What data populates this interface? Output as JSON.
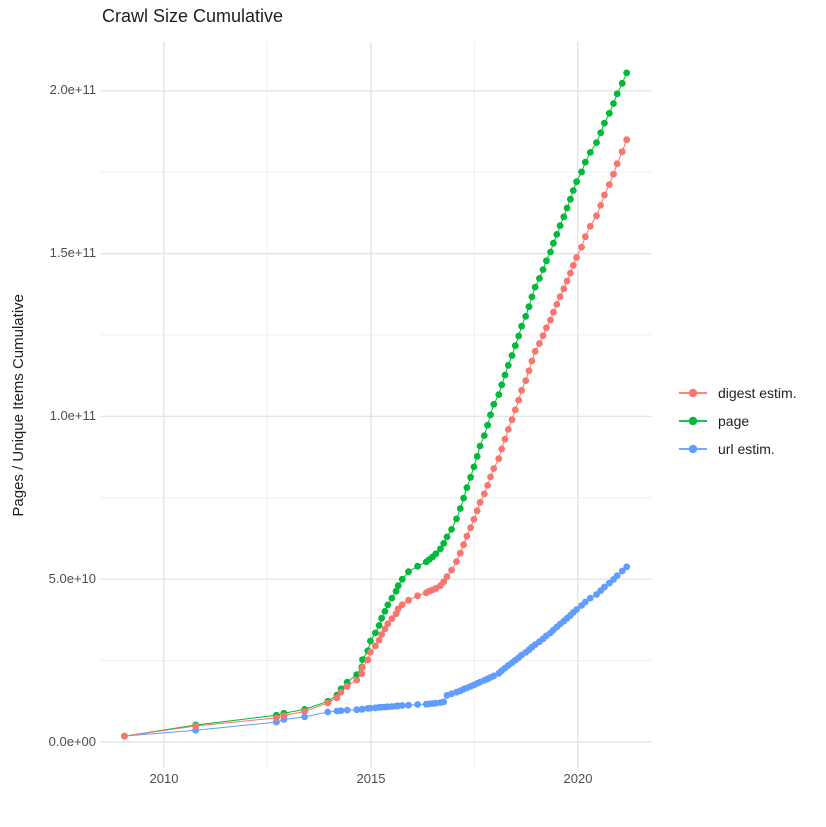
{
  "title": "Crawl Size Cumulative",
  "axes": {
    "y_label": "Pages / Unique Items Cumulative",
    "y_ticks": [
      "0.0e+00",
      "5.0e+10",
      "1.0e+11",
      "1.5e+11",
      "2.0e+11"
    ],
    "x_ticks": [
      "2010",
      "2015",
      "2020"
    ]
  },
  "legend": [
    {
      "label": "digest estim.",
      "color": "#F8766D"
    },
    {
      "label": "page",
      "color": "#00BA38"
    },
    {
      "label": "url estim.",
      "color": "#619CFF"
    }
  ],
  "colors": {
    "background": "#FFFFFF",
    "grid_major": "#E4E4E4",
    "grid_minor": "#F0F0F0",
    "tick_text": "#4D4D4D",
    "text": "#1F1F1F",
    "digest": "#F8766D",
    "page": "#00BA38",
    "url": "#619CFF"
  },
  "chart_data": {
    "type": "scatter",
    "title": "Crawl Size Cumulative",
    "xlabel": "",
    "ylabel": "Pages / Unique Items Cumulative",
    "legend_position": "right",
    "grid": true,
    "x_unit": "year (decimal, one point per crawl)",
    "value_unit": "items, in billions (1e9)",
    "xlim": [
      2008.46,
      2021.79
    ],
    "ylim_billions": [
      -8,
      215
    ],
    "x_major_ticks": [
      2010,
      2015,
      2020
    ],
    "x_minor_ticks": [
      2012.5,
      2017.5
    ],
    "y_major_ticks_billions": [
      0,
      50,
      100,
      150,
      200
    ],
    "y_minor_ticks_billions": [
      25,
      75,
      125,
      175
    ],
    "x": [
      2009.05,
      2010.77,
      2012.72,
      2012.9,
      2013.4,
      2013.96,
      2014.18,
      2014.28,
      2014.43,
      2014.66,
      2014.78,
      2014.8,
      2014.93,
      2014.99,
      2015.11,
      2015.2,
      2015.26,
      2015.34,
      2015.41,
      2015.51,
      2015.61,
      2015.66,
      2015.76,
      2015.91,
      2016.13,
      2016.34,
      2016.41,
      2016.49,
      2016.57,
      2016.68,
      2016.76,
      2016.84,
      2016.95,
      2017.07,
      2017.16,
      2017.24,
      2017.32,
      2017.41,
      2017.49,
      2017.57,
      2017.64,
      2017.74,
      2017.82,
      2017.89,
      2017.97,
      2018.09,
      2018.16,
      2018.24,
      2018.32,
      2018.41,
      2018.49,
      2018.57,
      2018.64,
      2018.74,
      2018.82,
      2018.89,
      2018.97,
      2019.07,
      2019.16,
      2019.24,
      2019.34,
      2019.41,
      2019.49,
      2019.57,
      2019.66,
      2019.74,
      2019.82,
      2019.89,
      2019.97,
      2020.09,
      2020.18,
      2020.3,
      2020.45,
      2020.55,
      2020.64,
      2020.76,
      2020.86,
      2020.95,
      2021.07,
      2021.18
    ],
    "series": [
      {
        "name": "digest estim.",
        "color": "#F8766D",
        "values": [
          1.8,
          4.9,
          7.4,
          8.1,
          9.4,
          12.0,
          13.6,
          15.3,
          17.1,
          19.0,
          21.0,
          22.9,
          25.2,
          27.6,
          29.5,
          31.3,
          33.0,
          34.7,
          36.3,
          37.9,
          39.4,
          40.9,
          42.2,
          43.5,
          44.9,
          45.8,
          46.3,
          46.7,
          47.2,
          48.0,
          49.2,
          50.8,
          52.8,
          55.4,
          58.0,
          60.6,
          63.2,
          65.8,
          68.4,
          71.0,
          73.6,
          76.2,
          78.8,
          81.4,
          84.0,
          87.0,
          90.0,
          93.0,
          96.0,
          99.0,
          102.0,
          105.0,
          108.0,
          111.0,
          114.0,
          117.0,
          120.0,
          122.4,
          124.8,
          127.2,
          129.6,
          132.0,
          134.4,
          136.8,
          139.2,
          141.6,
          144.0,
          146.4,
          148.8,
          152.0,
          155.2,
          158.4,
          161.6,
          164.8,
          168.0,
          171.2,
          174.4,
          177.6,
          181.3,
          185.0
        ]
      },
      {
        "name": "page",
        "color": "#00BA38",
        "values": [
          1.8,
          5.2,
          8.2,
          8.8,
          10.0,
          12.5,
          14.4,
          16.3,
          18.4,
          20.7,
          23.0,
          25.3,
          28.0,
          31.0,
          33.5,
          35.8,
          38.0,
          40.1,
          42.1,
          44.2,
          46.3,
          48.0,
          50.0,
          52.3,
          54.0,
          55.3,
          56.0,
          56.8,
          57.8,
          59.3,
          61.0,
          63.0,
          65.3,
          68.5,
          71.7,
          74.9,
          78.1,
          81.3,
          84.5,
          87.7,
          90.9,
          94.1,
          97.3,
          100.5,
          103.7,
          106.7,
          109.7,
          112.7,
          115.7,
          118.7,
          121.7,
          124.7,
          127.7,
          130.7,
          133.7,
          136.7,
          139.7,
          142.4,
          145.1,
          147.8,
          150.5,
          153.2,
          155.9,
          158.6,
          161.3,
          164.0,
          166.7,
          169.4,
          172.1,
          175.1,
          178.1,
          181.1,
          184.1,
          187.1,
          190.1,
          193.1,
          196.1,
          199.1,
          202.3,
          205.5
        ]
      },
      {
        "name": "url estim.",
        "color": "#619CFF",
        "values": [
          1.8,
          3.6,
          6.1,
          6.9,
          7.7,
          9.2,
          9.5,
          9.6,
          9.8,
          9.9,
          10.0,
          10.1,
          10.3,
          10.4,
          10.5,
          10.6,
          10.7,
          10.7,
          10.8,
          10.9,
          11.0,
          11.1,
          11.2,
          11.3,
          11.5,
          11.6,
          11.7,
          11.8,
          11.9,
          12.1,
          12.3,
          14.3,
          14.8,
          15.3,
          15.7,
          16.2,
          16.6,
          17.1,
          17.5,
          18.0,
          18.4,
          18.9,
          19.4,
          19.8,
          20.3,
          21.1,
          21.9,
          22.7,
          23.5,
          24.3,
          25.1,
          25.9,
          26.7,
          27.5,
          28.3,
          29.1,
          29.9,
          30.8,
          31.7,
          32.6,
          33.5,
          34.4,
          35.3,
          36.2,
          37.1,
          38.0,
          38.9,
          39.8,
          40.7,
          41.9,
          43.0,
          44.2,
          45.3,
          46.5,
          47.6,
          48.8,
          49.9,
          51.1,
          52.5,
          53.8
        ]
      }
    ]
  }
}
